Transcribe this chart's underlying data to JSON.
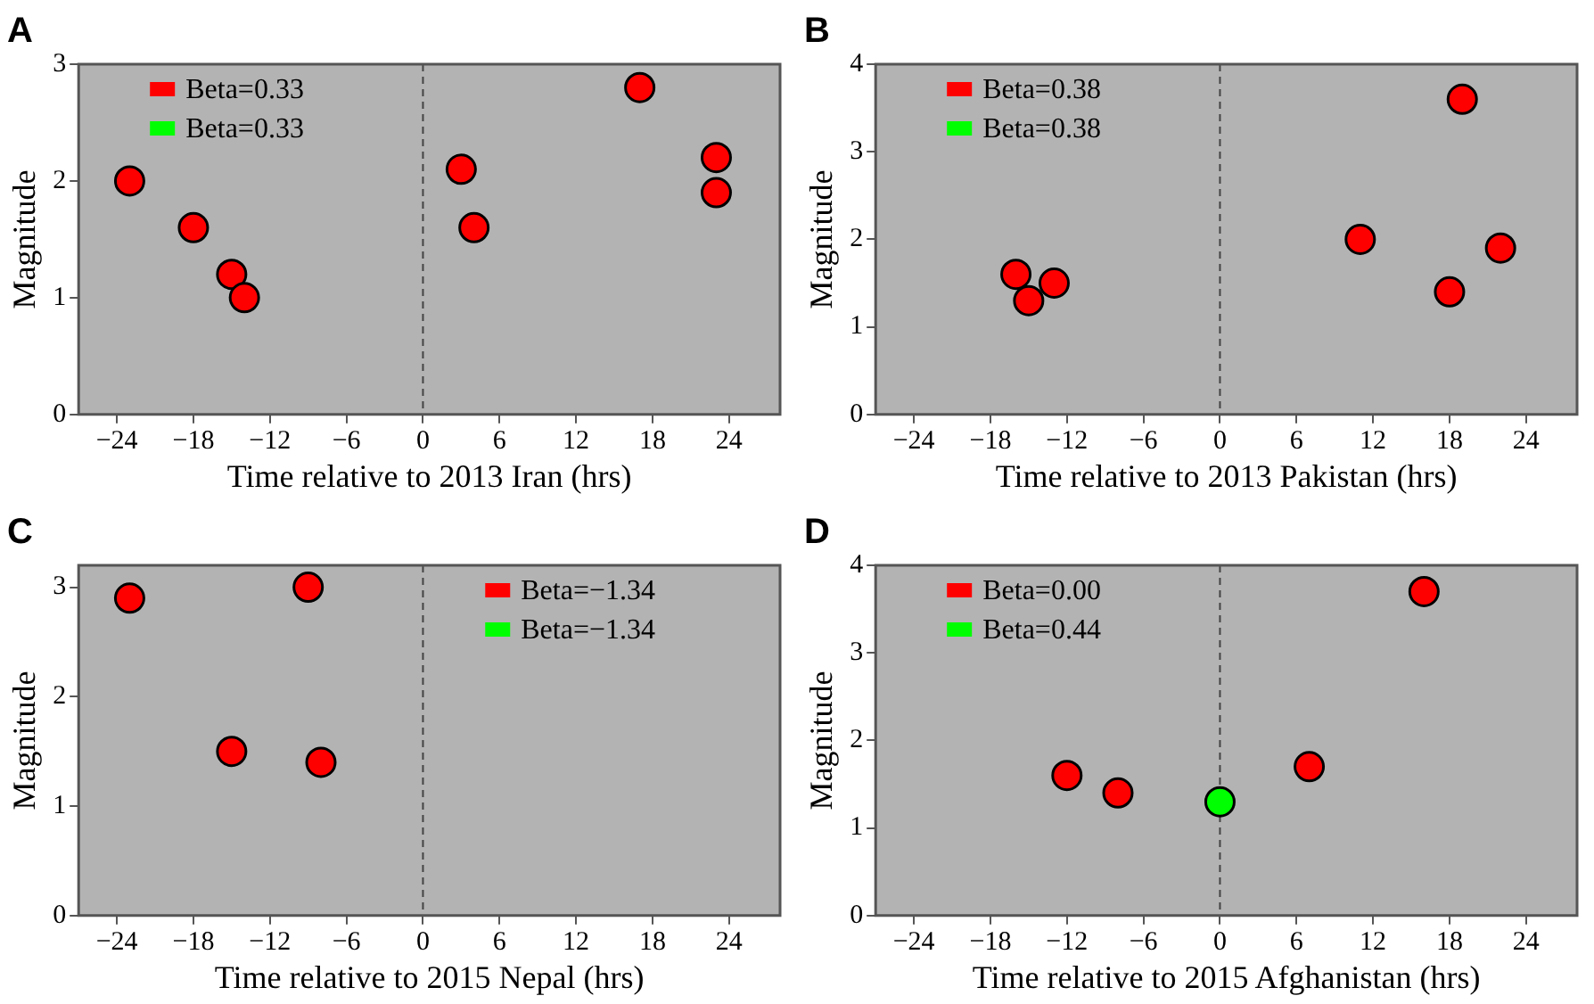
{
  "chart_data": [
    {
      "type": "scatter",
      "title": "A",
      "xlabel": "Time relative to 2013 Iran (hrs)",
      "ylabel": "Magnitude",
      "xlim": [
        -27,
        28
      ],
      "xticks": [
        -24,
        -18,
        -12,
        -6,
        0,
        6,
        12,
        18,
        24
      ],
      "ylim": [
        0,
        3
      ],
      "yticks": [
        0,
        1,
        2,
        3
      ],
      "grid": false,
      "legend": "top left",
      "marker": "circle",
      "ref_lines": [
        {
          "axis": "x",
          "value": 0,
          "label": null,
          "color": "#444444",
          "line_style": "dashed"
        }
      ],
      "series": [
        {
          "name": "Beta=0.33",
          "color": "#ff0000",
          "x": [
            -23,
            -18,
            -15,
            -14,
            3,
            4,
            17,
            23,
            23
          ],
          "values": [
            2.0,
            1.6,
            1.2,
            1.0,
            2.1,
            1.6,
            2.8,
            2.2,
            1.9
          ]
        },
        {
          "name": "Beta=0.33",
          "color": "#00ff00"
        }
      ]
    },
    {
      "type": "scatter",
      "title": "B",
      "xlabel": "Time relative to 2013 Pakistan (hrs)",
      "ylabel": "Magnitude",
      "xlim": [
        -27,
        28
      ],
      "xticks": [
        -24,
        -18,
        -12,
        -6,
        0,
        6,
        12,
        18,
        24
      ],
      "ylim": [
        0,
        4
      ],
      "yticks": [
        0,
        1,
        2,
        3,
        4
      ],
      "grid": false,
      "legend": "top left",
      "marker": "circle",
      "ref_lines": [
        {
          "axis": "x",
          "value": 0,
          "label": null,
          "color": "#444444",
          "line_style": "dashed"
        }
      ],
      "series": [
        {
          "name": "Beta=0.38",
          "color": "#ff0000",
          "x": [
            -16,
            -15,
            -13,
            11,
            18,
            19,
            22
          ],
          "values": [
            1.6,
            1.3,
            1.5,
            2.0,
            1.4,
            3.6,
            1.9
          ]
        },
        {
          "name": "Beta=0.38",
          "color": "#00ff00"
        }
      ]
    },
    {
      "type": "scatter",
      "title": "C",
      "xlabel": "Time relative to 2015 Nepal (hrs)",
      "ylabel": "Magnitude",
      "xlim": [
        -27,
        28
      ],
      "xticks": [
        -24,
        -18,
        -12,
        -6,
        0,
        6,
        12,
        18,
        24
      ],
      "ylim": [
        0,
        3.2
      ],
      "yticks": [
        0,
        1,
        2,
        3
      ],
      "grid": false,
      "legend": "top right",
      "marker": "circle",
      "ref_lines": [
        {
          "axis": "x",
          "value": 0,
          "label": null,
          "color": "#444444",
          "line_style": "dashed"
        }
      ],
      "series": [
        {
          "name": "Beta=−1.34",
          "color": "#ff0000",
          "x": [
            -23,
            -9,
            -15,
            -8
          ],
          "values": [
            2.9,
            3.0,
            1.5,
            1.4
          ]
        },
        {
          "name": "Beta=−1.34",
          "color": "#00ff00"
        }
      ]
    },
    {
      "type": "scatter",
      "title": "D",
      "xlabel": "Time relative to 2015 Afghanistan (hrs)",
      "ylabel": "Magnitude",
      "xlim": [
        -27,
        28
      ],
      "xticks": [
        -24,
        -18,
        -12,
        -6,
        0,
        6,
        12,
        18,
        24
      ],
      "ylim": [
        0,
        4
      ],
      "yticks": [
        0,
        1,
        2,
        3,
        4
      ],
      "grid": false,
      "legend": "top left",
      "marker": "circle",
      "ref_lines": [
        {
          "axis": "x",
          "value": 0,
          "label": null,
          "color": "#444444",
          "line_style": "dashed"
        }
      ],
      "series": [
        {
          "name": "Beta=0.00",
          "color": "#ff0000",
          "x": [
            -12,
            -8,
            7,
            16
          ],
          "values": [
            1.6,
            1.4,
            1.7,
            3.7
          ]
        },
        {
          "name": "Beta=0.44",
          "color": "#00ff00",
          "x": [
            0
          ],
          "values": [
            1.3
          ]
        }
      ]
    }
  ]
}
